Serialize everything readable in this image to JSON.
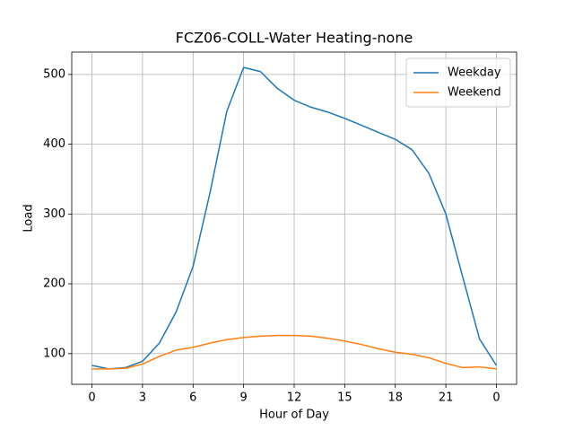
{
  "chart_data": {
    "type": "line",
    "title": "FCZ06-COLL-Water Heating-none",
    "x_label": "Hour of Day",
    "y_label": "Load",
    "x": [
      0,
      1,
      2,
      3,
      4,
      5,
      6,
      7,
      8,
      9,
      10,
      11,
      12,
      13,
      14,
      15,
      16,
      17,
      18,
      19,
      20,
      21,
      22,
      23,
      24
    ],
    "series": [
      {
        "name": "Weekday",
        "color": "#1f77b4",
        "values": [
          83,
          78,
          80,
          89,
          115,
          160,
          225,
          330,
          447,
          510,
          504,
          480,
          463,
          453,
          446,
          437,
          427,
          417,
          407,
          392,
          358,
          300,
          210,
          121,
          83
        ]
      },
      {
        "name": "Weekend",
        "color": "#ff7f0e",
        "values": [
          78,
          78,
          79,
          85,
          96,
          105,
          109,
          115,
          120,
          123,
          125,
          126,
          126,
          125,
          122,
          118,
          113,
          107,
          102,
          99,
          94,
          86,
          80,
          81,
          78
        ]
      }
    ],
    "xlim": [
      -1.2,
      25.2
    ],
    "xticks": [
      0,
      3,
      6,
      9,
      12,
      15,
      18,
      21,
      {
        "value": 24,
        "label": "0"
      }
    ],
    "ylim": [
      56,
      532
    ],
    "yticks": [
      100,
      200,
      300,
      400,
      500
    ],
    "grid": true,
    "legend": "upper right"
  }
}
